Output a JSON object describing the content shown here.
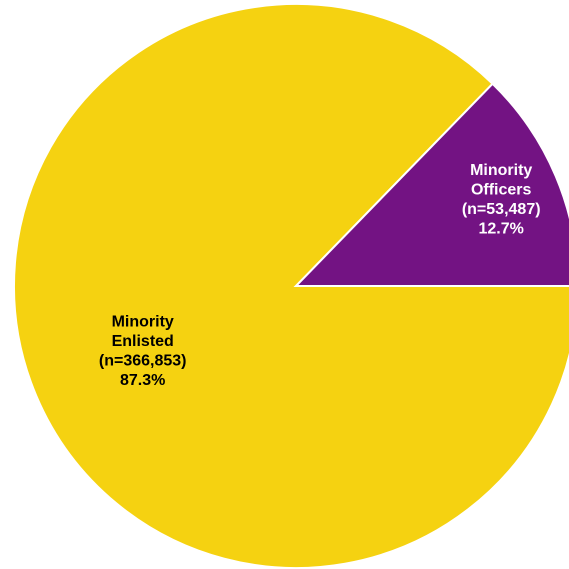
{
  "chart_data": {
    "type": "pie",
    "title": "",
    "slices": [
      {
        "name": "Minority Enlisted",
        "label_lines": [
          "Minority",
          "Enlisted",
          "(n=366,853)",
          "87.3%"
        ],
        "n": 366853,
        "percent": 87.3,
        "color": "#F5D211",
        "label_color": "#000000"
      },
      {
        "name": "Minority Officers",
        "label_lines": [
          "Minority",
          "Officers",
          "(n=53,487)",
          "12.7%"
        ],
        "n": 53487,
        "percent": 12.7,
        "color": "#731383",
        "label_color": "#FFFFFF"
      }
    ]
  }
}
